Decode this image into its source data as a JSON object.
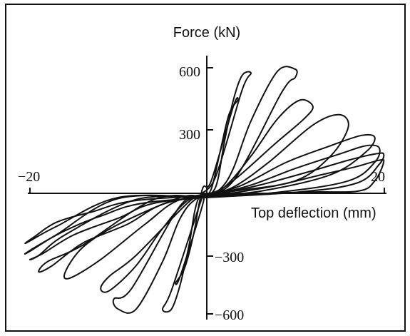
{
  "chart_data": {
    "type": "line",
    "title": "",
    "xlabel": "Top deflection (mm)",
    "ylabel": "Force (kN)",
    "xlim": [
      -20,
      20
    ],
    "ylim": [
      -660,
      660
    ],
    "x_tick_labels": [
      {
        "value": -20,
        "label": "−20"
      },
      {
        "value": 20,
        "label": "20"
      }
    ],
    "y_tick_labels": [
      {
        "value": 600,
        "label": "600"
      },
      {
        "value": 300,
        "label": "300"
      },
      {
        "value": -300,
        "label": "−300"
      },
      {
        "value": -600,
        "label": "−600"
      }
    ],
    "grid": false,
    "legend": "none",
    "line_color": "#111111",
    "series": [
      {
        "x": [
          -0.5,
          0.5,
          1.5,
          2.5,
          3.5,
          3.0,
          0.5,
          -0.5,
          -1.5,
          -2.5,
          -3.5,
          -3.0,
          -0.5,
          -0.5
        ],
        "y": [
          -20,
          20,
          200,
          380,
          450,
          420,
          60,
          20,
          -200,
          -360,
          -430,
          -400,
          -60,
          -20
        ]
      },
      {
        "x": [
          -0.5,
          1.0,
          2.0,
          3.0,
          4.0,
          5.0,
          4.0,
          1.0,
          -1.0,
          -2.0,
          -3.0,
          -4.0,
          -5.0,
          -4.0,
          -1.0,
          -0.5
        ],
        "y": [
          -20,
          30,
          250,
          450,
          570,
          580,
          500,
          80,
          -30,
          -250,
          -440,
          -560,
          -560,
          -470,
          -80,
          -20
        ]
      },
      {
        "x": [
          -0.5,
          1.5,
          3.0,
          5.0,
          8.0,
          10.0,
          10.0,
          8.5,
          3.0,
          -1.0,
          -3.0,
          -5.0,
          -8.0,
          -10.0,
          -10.5,
          -8.5,
          -3.0,
          -0.5
        ],
        "y": [
          -20,
          20,
          120,
          350,
          590,
          600,
          560,
          490,
          60,
          -20,
          -120,
          -330,
          -560,
          -560,
          -510,
          -460,
          -60,
          -20
        ]
      },
      {
        "x": [
          -0.5,
          2.0,
          5.0,
          8.0,
          10.5,
          12.0,
          11.0,
          8.0,
          2.0,
          -2.0,
          -5.0,
          -8.0,
          -11.0,
          -12.0,
          -11.0,
          -8.0,
          -2.0,
          -0.5
        ],
        "y": [
          -20,
          30,
          180,
          360,
          450,
          420,
          360,
          250,
          30,
          -30,
          -170,
          -350,
          -470,
          -460,
          -400,
          -300,
          -40,
          -20
        ]
      },
      {
        "x": [
          -0.5,
          3.0,
          7.0,
          12.0,
          15.0,
          16.0,
          14.0,
          10.0,
          3.0,
          -3.0,
          -7.0,
          -12.0,
          -15.5,
          -16.0,
          -14.0,
          -10.0,
          -3.0,
          -0.5
        ],
        "y": [
          -20,
          30,
          150,
          330,
          380,
          320,
          180,
          60,
          10,
          -30,
          -150,
          -320,
          -410,
          -380,
          -260,
          -150,
          -20,
          -20
        ]
      },
      {
        "x": [
          -0.5,
          4.0,
          9.0,
          14.0,
          17.5,
          19.0,
          18.0,
          14.0,
          6.0,
          -4.0,
          -9.0,
          -14.0,
          -17.5,
          -19.0,
          -18.0,
          -14.0,
          -6.0,
          -0.5
        ],
        "y": [
          -20,
          40,
          150,
          230,
          280,
          270,
          200,
          90,
          10,
          -40,
          -150,
          -240,
          -350,
          -380,
          -330,
          -250,
          -30,
          -20
        ]
      },
      {
        "x": [
          -0.5,
          5.0,
          10.0,
          15.0,
          18.0,
          19.5,
          19.0,
          16.0,
          8.0,
          -5.0,
          -10.0,
          -15.0,
          -18.5,
          -20.0,
          -19.0,
          -16.0,
          -8.0,
          -0.5
        ],
        "y": [
          -20,
          40,
          120,
          190,
          230,
          220,
          150,
          60,
          5,
          -40,
          -120,
          -200,
          -290,
          -320,
          -300,
          -200,
          -30,
          -20
        ]
      },
      {
        "x": [
          -0.5,
          6.0,
          12.0,
          16.0,
          19.0,
          20.0,
          19.5,
          17.0,
          10.0,
          -6.0,
          -12.0,
          -16.0,
          -19.0,
          -20.5,
          -20.0,
          -17.0,
          -10.0,
          -0.5
        ],
        "y": [
          -20,
          40,
          110,
          160,
          190,
          190,
          140,
          50,
          5,
          -40,
          -110,
          -180,
          -250,
          -290,
          -280,
          -200,
          -25,
          -20
        ]
      },
      {
        "x": [
          -0.5,
          7.0,
          13.0,
          17.0,
          19.5,
          20.0,
          19.0,
          17.0,
          10.0,
          -7.0,
          -13.0,
          -17.0,
          -19.5,
          -20.5,
          -20.0,
          -17.0,
          -10.0,
          -0.5
        ],
        "y": [
          -20,
          30,
          90,
          130,
          160,
          150,
          60,
          10,
          5,
          -30,
          -90,
          -140,
          -210,
          -240,
          -230,
          -160,
          -20,
          -20
        ]
      }
    ]
  }
}
